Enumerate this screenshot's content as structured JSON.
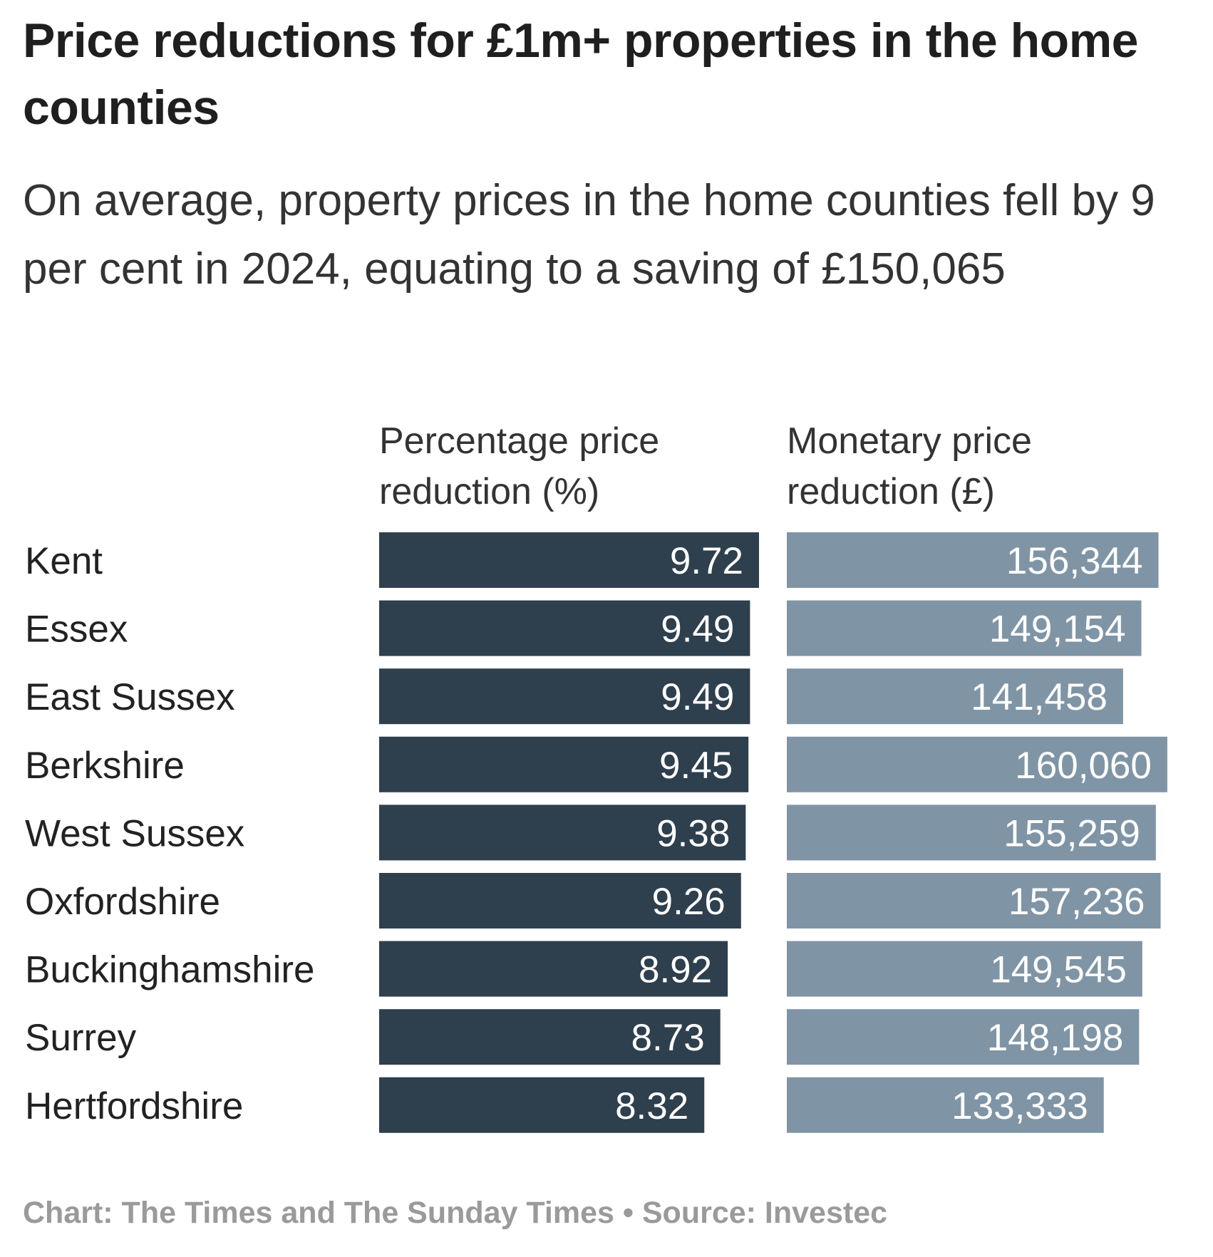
{
  "title": "Price reductions for £1m+ properties in the home counties",
  "subtitle": "On average, property prices in the home counties fell by 9 per cent in 2024, equating to a saving of £150,065",
  "footer": "Chart: The Times and The Sunday Times • Source: Investec",
  "colors": {
    "percentage": "#2e3f4d",
    "monetary": "#7f95a6",
    "value_text": "#ffffff"
  },
  "chart_data": {
    "type": "bar",
    "orientation": "horizontal",
    "categories": [
      "Kent",
      "Essex",
      "East Sussex",
      "Berkshire",
      "West Sussex",
      "Oxfordshire",
      "Buckinghamshire",
      "Surrey",
      "Hertfordshire"
    ],
    "series": [
      {
        "name": "Percentage price reduction (%)",
        "values": [
          9.72,
          9.49,
          9.49,
          9.45,
          9.38,
          9.26,
          8.92,
          8.73,
          8.32
        ],
        "labels": [
          "9.72",
          "9.49",
          "9.49",
          "9.45",
          "9.38",
          "9.26",
          "8.92",
          "8.73",
          "8.32"
        ]
      },
      {
        "name": "Monetary price reduction (£)",
        "values": [
          156344,
          149154,
          141458,
          160060,
          155259,
          157236,
          149545,
          148198,
          133333
        ],
        "labels": [
          "156,344",
          "149,154",
          "141,458",
          "160,060",
          "155,259",
          "157,236",
          "149,545",
          "148,198",
          "133,333"
        ]
      }
    ],
    "grid": false,
    "legend": "none"
  }
}
